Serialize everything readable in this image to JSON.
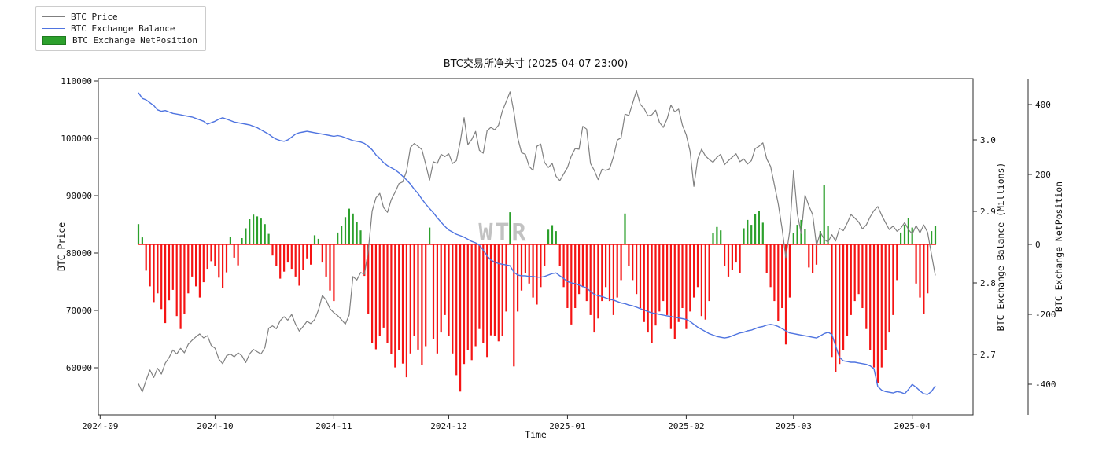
{
  "figure": {
    "title": "BTC交易所净头寸 (2025-04-07 23:00)",
    "watermark": "WTR",
    "background": "#ffffff"
  },
  "legend": {
    "items": [
      {
        "label": "BTC Price",
        "type": "line",
        "color": "#7f7f7f"
      },
      {
        "label": "BTC Exchange Balance",
        "type": "line",
        "color": "#4f74e0"
      },
      {
        "label": "BTC Exchange NetPosition",
        "type": "patch",
        "color": "#2ca02c"
      }
    ]
  },
  "chart_data": {
    "type": "mixed",
    "title": "BTC交易所净头寸 (2025-04-07 23:00)",
    "xlabel": "Time",
    "ylabel_left": "BTC Price",
    "ylabel_right1": "BTC Exchange Balance (Millions)",
    "ylabel_right2": "BTC Exchange NetPosition",
    "start_date": "2024-09-11",
    "end_date": "2025-04-07",
    "x_tick_labels": [
      "2024-09",
      "2024-10",
      "2024-11",
      "2024-12",
      "2025-01",
      "2025-02",
      "2025-03",
      "2025-04"
    ],
    "x_tick_days": [
      -10,
      20,
      51,
      81,
      112,
      143,
      171,
      202
    ],
    "price_axis": {
      "ticks": [
        110000,
        100000,
        90000,
        80000,
        70000,
        60000
      ],
      "range_top": 110400,
      "range_bottom": 51500
    },
    "balance_axis": {
      "ticks": [
        3.0,
        2.9,
        2.8,
        2.7
      ]
    },
    "netposition_axis": {
      "ticks": [
        400,
        200,
        0,
        -200,
        -400
      ]
    },
    "colors": {
      "price": "#808080",
      "balance": "#4f74e0",
      "net_positive": "#2ca02c",
      "net_negative": "#f51414"
    },
    "series": [
      {
        "name": "BTC Price",
        "type": "line",
        "axis": "price",
        "values": [
          57200,
          55800,
          57800,
          59600,
          58300,
          59900,
          58900,
          60800,
          61800,
          63100,
          62400,
          63400,
          62600,
          64100,
          64800,
          65400,
          65900,
          65200,
          65600,
          63900,
          63400,
          61500,
          60700,
          62100,
          62400,
          61900,
          62600,
          62100,
          60900,
          62400,
          63200,
          62800,
          62400,
          63500,
          66900,
          67300,
          66800,
          68200,
          68900,
          68300,
          69300,
          67600,
          66400,
          67200,
          68100,
          67700,
          68400,
          70100,
          72600,
          71800,
          70300,
          69600,
          69100,
          68400,
          67600,
          69200,
          75900,
          75300,
          76600,
          76300,
          80400,
          87300,
          89600,
          90400,
          87900,
          87100,
          89300,
          90600,
          92100,
          92400,
          94300,
          98400,
          99100,
          98600,
          98000,
          95400,
          92700,
          95900,
          95600,
          97200,
          96800,
          97300,
          95600,
          96100,
          99400,
          103600,
          98900,
          99800,
          101200,
          97900,
          97400,
          101300,
          101900,
          101500,
          102300,
          104800,
          106400,
          108100,
          104600,
          100100,
          97500,
          97200,
          95100,
          94400,
          98600,
          99000,
          95800,
          94900,
          95600,
          93400,
          92600,
          93800,
          94900,
          96900,
          98200,
          98100,
          102100,
          101600,
          95600,
          94400,
          92800,
          94600,
          94400,
          94700,
          96800,
          99700,
          100100,
          104200,
          104000,
          106100,
          108300,
          105900,
          105200,
          103900,
          104100,
          104900,
          102800,
          101900,
          103400,
          105800,
          104600,
          105100,
          102300,
          100600,
          97700,
          91600,
          96400,
          98100,
          96900,
          96300,
          95800,
          96700,
          97200,
          95400,
          96100,
          96700,
          97300,
          95900,
          96400,
          95500,
          96100,
          98200,
          98600,
          99200,
          96400,
          95100,
          91900,
          88600,
          84300,
          79200,
          83800,
          94300,
          86900,
          83400,
          90100,
          88200,
          86700,
          81300,
          83600,
          82400,
          81900,
          83200,
          82100,
          84300,
          83900,
          85200,
          86700,
          86100,
          85400,
          84200,
          84900,
          86300,
          87400,
          88100,
          86600,
          85300,
          84100,
          84700,
          83800,
          84300,
          85300,
          84100,
          83300,
          84800,
          83500,
          84900,
          83600,
          79800,
          76100
        ]
      },
      {
        "name": "BTC Exchange Balance",
        "type": "line",
        "axis": "balance",
        "values": [
          3.066,
          3.058,
          3.056,
          3.052,
          3.048,
          3.042,
          3.04,
          3.041,
          3.039,
          3.037,
          3.036,
          3.035,
          3.034,
          3.033,
          3.032,
          3.03,
          3.028,
          3.026,
          3.022,
          3.024,
          3.026,
          3.029,
          3.031,
          3.029,
          3.027,
          3.025,
          3.024,
          3.023,
          3.022,
          3.021,
          3.019,
          3.017,
          3.014,
          3.011,
          3.008,
          3.004,
          3.001,
          2.999,
          2.998,
          3.0,
          3.004,
          3.008,
          3.01,
          3.011,
          3.012,
          3.011,
          3.01,
          3.009,
          3.008,
          3.007,
          3.006,
          3.005,
          3.006,
          3.005,
          3.003,
          3.001,
          2.999,
          2.998,
          2.997,
          2.995,
          2.991,
          2.986,
          2.979,
          2.974,
          2.968,
          2.964,
          2.961,
          2.958,
          2.954,
          2.949,
          2.944,
          2.938,
          2.931,
          2.925,
          2.917,
          2.91,
          2.904,
          2.898,
          2.891,
          2.885,
          2.879,
          2.874,
          2.871,
          2.868,
          2.866,
          2.864,
          2.861,
          2.858,
          2.856,
          2.853,
          2.846,
          2.838,
          2.832,
          2.829,
          2.827,
          2.826,
          2.825,
          2.824,
          2.815,
          2.811,
          2.81,
          2.81,
          2.809,
          2.809,
          2.808,
          2.808,
          2.809,
          2.811,
          2.813,
          2.814,
          2.81,
          2.806,
          2.802,
          2.8,
          2.799,
          2.797,
          2.795,
          2.793,
          2.788,
          2.784,
          2.782,
          2.781,
          2.779,
          2.777,
          2.776,
          2.774,
          2.772,
          2.771,
          2.769,
          2.768,
          2.766,
          2.764,
          2.762,
          2.76,
          2.758,
          2.757,
          2.756,
          2.755,
          2.754,
          2.753,
          2.752,
          2.751,
          2.75,
          2.749,
          2.746,
          2.742,
          2.738,
          2.735,
          2.732,
          2.729,
          2.727,
          2.725,
          2.724,
          2.723,
          2.724,
          2.726,
          2.728,
          2.73,
          2.731,
          2.733,
          2.734,
          2.736,
          2.738,
          2.739,
          2.741,
          2.742,
          2.741,
          2.739,
          2.736,
          2.733,
          2.73,
          2.729,
          2.728,
          2.727,
          2.726,
          2.725,
          2.724,
          2.723,
          2.726,
          2.729,
          2.731,
          2.728,
          2.712,
          2.696,
          2.691,
          2.69,
          2.689,
          2.689,
          2.688,
          2.687,
          2.686,
          2.684,
          2.68,
          2.655,
          2.65,
          2.648,
          2.647,
          2.646,
          2.648,
          2.647,
          2.645,
          2.651,
          2.658,
          2.654,
          2.649,
          2.645,
          2.644,
          2.648,
          2.656
        ]
      },
      {
        "name": "BTC Exchange NetPosition",
        "type": "bar",
        "axis": "netposition",
        "values": [
          58,
          20,
          -75,
          -120,
          -165,
          -140,
          -185,
          -225,
          -160,
          -130,
          -205,
          -242,
          -198,
          -140,
          -92,
          -120,
          -152,
          -108,
          -70,
          -48,
          -62,
          -95,
          -125,
          -80,
          22,
          -38,
          -60,
          18,
          46,
          72,
          85,
          80,
          74,
          58,
          30,
          -32,
          -62,
          -98,
          -78,
          -52,
          -70,
          -92,
          -118,
          -72,
          -40,
          -58,
          26,
          16,
          -52,
          -92,
          -132,
          -162,
          34,
          52,
          78,
          102,
          88,
          64,
          40,
          -90,
          -200,
          -283,
          -300,
          -262,
          -238,
          -281,
          -313,
          -352,
          -302,
          -341,
          -380,
          -312,
          -262,
          -301,
          -346,
          -291,
          48,
          -272,
          -312,
          -252,
          -202,
          -262,
          -312,
          -374,
          -421,
          -342,
          -302,
          -331,
          -291,
          -242,
          -281,
          -322,
          -260,
          -262,
          -277,
          -262,
          -192,
          92,
          -349,
          -192,
          -132,
          -81,
          -112,
          -152,
          -172,
          -122,
          -61,
          42,
          55,
          38,
          -62,
          -122,
          -182,
          -229,
          -182,
          -142,
          -122,
          -162,
          -202,
          -252,
          -212,
          -162,
          -122,
          -162,
          -202,
          -152,
          -102,
          88,
          -62,
          -102,
          -142,
          -182,
          -222,
          -252,
          -282,
          -232,
          -192,
          -162,
          -202,
          -242,
          -272,
          -222,
          -182,
          -242,
          -192,
          -152,
          -122,
          -205,
          -215,
          -162,
          32,
          50,
          40,
          -62,
          -92,
          -72,
          -52,
          -82,
          46,
          70,
          56,
          86,
          95,
          62,
          -82,
          -122,
          -162,
          -218,
          -182,
          -286,
          -152,
          32,
          56,
          70,
          44,
          -66,
          -81,
          -58,
          38,
          170,
          52,
          -322,
          -365,
          -342,
          -302,
          -262,
          -202,
          -162,
          -142,
          -182,
          -242,
          -302,
          -352,
          -396,
          -352,
          -302,
          -252,
          -202,
          -102,
          34,
          56,
          76,
          48,
          -112,
          -152,
          -200,
          -140,
          38,
          54
        ]
      }
    ]
  }
}
